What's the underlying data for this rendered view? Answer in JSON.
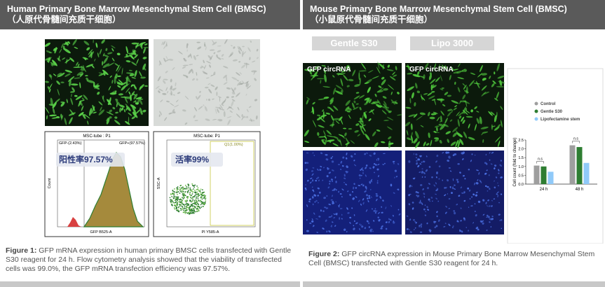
{
  "panels": [
    {
      "title": "Human Primary Bone Marrow Mesenchymal Stem Cell (BMSC)",
      "subtitle": "（人原代骨髓间充质干细胞）",
      "histogram": {
        "title": "MSC-tube : P1",
        "gate_left": "GFP-(2.43%)",
        "gate_right": "GFP+(97.57%)",
        "badge": "阳性率97.57%",
        "ylabel": "Count",
        "xlabel": "GFP B525-A"
      },
      "scatter": {
        "title": "MSC-tube: P1",
        "gate": "Q1(1.00%)",
        "badge": "活率99%",
        "ylabel": "SSC-A",
        "xlabel": "PI Y585-A"
      },
      "caption_label": "Figure 1:",
      "caption": "GFP mRNA expression in human primary BMSC cells transfected with Gentle S30 reagent for 24 h. Flow cytometry analysis showed that the viability of transfected cells was 99.0%, the GFP mRNA transfection efficiency was 97.57%."
    },
    {
      "title": "Mouse Primary Bone Marrow Mesenchymal Stem Cell (BMSC)",
      "subtitle": "（小鼠原代骨髓间充质干细胞）",
      "buttons": [
        "Gentle S30",
        "Lipo 3000"
      ],
      "image_labels": [
        "GFP circRNA",
        "GFP circRNA"
      ],
      "caption_label": "Figure 2:",
      "caption": "GFP circRNA expression in Mouse Primary Bone Marrow Mesenchymal Stem Cell (BMSC) transfected with Gentle S30 reagent for 24 h."
    }
  ],
  "chart_data": {
    "type": "bar",
    "ylabel": "Cell count (fold to change)",
    "categories": [
      "24 h",
      "48 h"
    ],
    "series": [
      {
        "name": "Control",
        "color": "#9e9e9e",
        "values": [
          1.05,
          2.2
        ]
      },
      {
        "name": "Gentle S30",
        "color": "#2e7d32",
        "values": [
          1.0,
          2.1
        ]
      },
      {
        "name": "Lipofectamine stem",
        "color": "#90caf9",
        "values": [
          0.7,
          1.2
        ]
      }
    ],
    "annotations": [
      "n.s",
      "n.s"
    ],
    "ylim": [
      0,
      2.5
    ],
    "yticks": [
      {
        "value": 0,
        "label": "0.0"
      },
      0.5,
      {
        "value": 1,
        "label": "1.0"
      },
      1.5,
      {
        "value": 2,
        "label": "2.0"
      },
      2.5
    ]
  }
}
